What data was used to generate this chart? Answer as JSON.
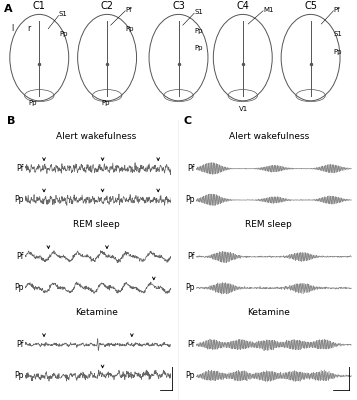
{
  "panel_A_label": "A",
  "panel_B_label": "B",
  "panel_C_label": "C",
  "condition_labels": [
    "Alert wakefulness",
    "REM sleep",
    "Ketamine"
  ],
  "channel_labels": [
    "Pf",
    "Pp"
  ],
  "brain_labels": [
    "C1",
    "C2",
    "C3",
    "C4",
    "C5"
  ],
  "bg_color": "#ffffff",
  "trace_color_B": "#666666",
  "trace_color_C": "#888888",
  "n_samples": 500,
  "seed": 42
}
